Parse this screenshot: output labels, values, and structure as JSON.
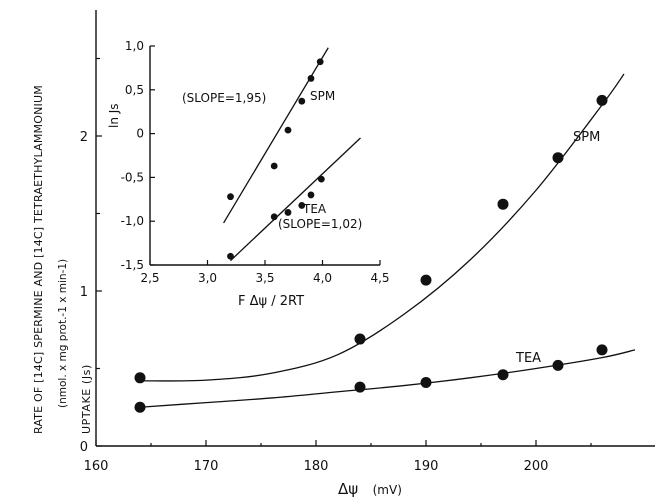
{
  "chart_data": [
    {
      "type": "scatter",
      "x_label_symbol": "Δψ",
      "x_label_unit": "(mV)",
      "y_label_line1": "RATE OF [14C] SPERMINE AND [14C] TETRAETHYLAMMONIUM",
      "y_label_line2": "(nmol. x mg prot.-1 x min-1)",
      "y_label_line3": "UPTAKE (Js)",
      "xlim": [
        160,
        210
      ],
      "ylim": [
        0,
        2.5
      ],
      "x_ticks": [
        "160",
        "170",
        "180",
        "190",
        "200"
      ],
      "y_ticks": [
        "0",
        "1",
        "2"
      ],
      "series": [
        {
          "name": "SPM",
          "points": [
            [
              164,
              0.44
            ],
            [
              184,
              0.69
            ],
            [
              190,
              1.07
            ],
            [
              197,
              1.56
            ],
            [
              202,
              1.86
            ],
            [
              206,
              2.23
            ]
          ],
          "fit": [
            [
              164,
              0.42
            ],
            [
              170,
              0.425
            ],
            [
              176,
              0.47
            ],
            [
              182,
              0.59
            ],
            [
              188,
              0.85
            ],
            [
              194,
              1.2
            ],
            [
              200,
              1.65
            ],
            [
              206,
              2.2
            ],
            [
              208,
              2.4
            ]
          ]
        },
        {
          "name": "TEA",
          "points": [
            [
              164,
              0.25
            ],
            [
              184,
              0.38
            ],
            [
              190,
              0.41
            ],
            [
              197,
              0.46
            ],
            [
              202,
              0.52
            ],
            [
              206,
              0.62
            ]
          ],
          "fit": [
            [
              164,
              0.25
            ],
            [
              170,
              0.28
            ],
            [
              176,
              0.31
            ],
            [
              182,
              0.35
            ],
            [
              188,
              0.39
            ],
            [
              194,
              0.44
            ],
            [
              200,
              0.5
            ],
            [
              206,
              0.57
            ],
            [
              209,
              0.62
            ]
          ]
        }
      ]
    },
    {
      "type": "scatter",
      "xlabel": "F Δψ / 2RT",
      "ylabel": "ln  Js",
      "xlim": [
        2.5,
        4.5
      ],
      "ylim": [
        -1.5,
        1.0
      ],
      "x_ticks": [
        "2,5",
        "3,0",
        "3,5",
        "4,0",
        "4,5"
      ],
      "y_ticks": [
        "1,0",
        "0,5",
        "0",
        "-0,5",
        "-1,0",
        "-1,5"
      ],
      "series": [
        {
          "name": "SPM",
          "annotation": "(SLOPE=1,95)",
          "points": [
            [
              3.2,
              -0.72
            ],
            [
              3.58,
              -0.37
            ],
            [
              3.7,
              0.04
            ],
            [
              3.82,
              0.37
            ],
            [
              3.9,
              0.63
            ],
            [
              3.98,
              0.82
            ]
          ],
          "fit_line": [
            [
              3.14,
              -1.02
            ],
            [
              4.05,
              0.98
            ]
          ]
        },
        {
          "name": "TEA",
          "annotation": "(SLOPE=1,02)",
          "points": [
            [
              3.2,
              -1.4
            ],
            [
              3.58,
              -0.95
            ],
            [
              3.7,
              -0.9
            ],
            [
              3.82,
              -0.82
            ],
            [
              3.9,
              -0.7
            ],
            [
              3.99,
              -0.52
            ]
          ],
          "fit_line": [
            [
              3.2,
              -1.45
            ],
            [
              4.33,
              -0.05
            ]
          ]
        }
      ]
    }
  ]
}
